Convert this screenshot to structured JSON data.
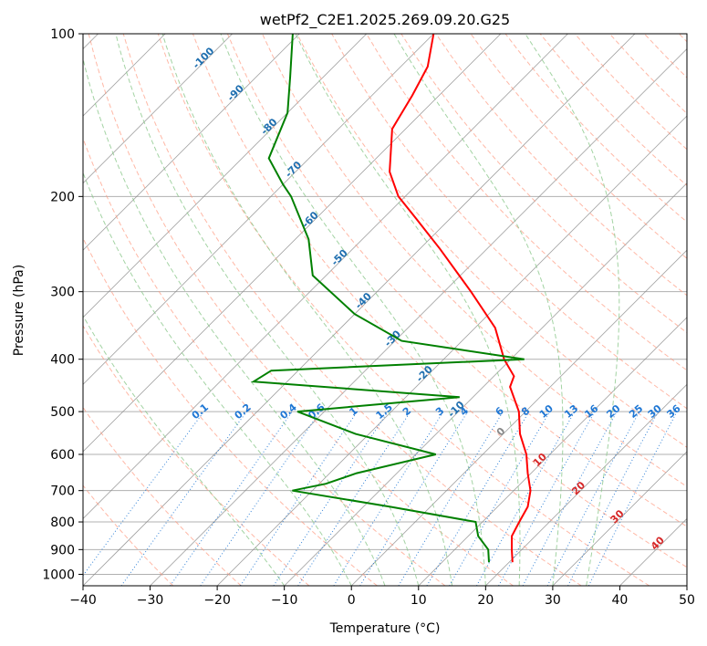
{
  "chart_data": {
    "type": "line",
    "title": "wetPf2_C2E1.2025.269.09.20.G25",
    "xlabel": "Temperature (°C)",
    "ylabel": "Pressure (hPa)",
    "xlim": [
      -40,
      50
    ],
    "ylim": [
      1050,
      100
    ],
    "y_scale": "log",
    "x_ticks": [
      "−40",
      "−30",
      "−20",
      "−10",
      "0",
      "10",
      "20",
      "30",
      "40",
      "50"
    ],
    "y_ticks": [
      "100",
      "200",
      "300",
      "400",
      "500",
      "600",
      "700",
      "800",
      "900",
      "1000"
    ],
    "grid": true,
    "series": [
      {
        "role": "temperature",
        "color": "#ff0000",
        "points": [
          {
            "p": 950,
            "t": 20.5
          },
          {
            "p": 900,
            "t": 18.5
          },
          {
            "p": 850,
            "t": 16.5
          },
          {
            "p": 800,
            "t": 15.5
          },
          {
            "p": 750,
            "t": 14.5
          },
          {
            "p": 700,
            "t": 12.5
          },
          {
            "p": 650,
            "t": 9.5
          },
          {
            "p": 600,
            "t": 6.5
          },
          {
            "p": 550,
            "t": 2.5
          },
          {
            "p": 500,
            "t": -1.0
          },
          {
            "p": 450,
            "t": -6.0
          },
          {
            "p": 430,
            "t": -7.0
          },
          {
            "p": 400,
            "t": -11.0
          },
          {
            "p": 350,
            "t": -17.0
          },
          {
            "p": 300,
            "t": -26.0
          },
          {
            "p": 250,
            "t": -37.0
          },
          {
            "p": 220,
            "t": -45.0
          },
          {
            "p": 200,
            "t": -51.0
          },
          {
            "p": 180,
            "t": -56.0
          },
          {
            "p": 150,
            "t": -62.0
          },
          {
            "p": 130,
            "t": -64.0
          },
          {
            "p": 115,
            "t": -66.0
          },
          {
            "p": 100,
            "t": -70.0
          }
        ]
      },
      {
        "role": "dewpoint",
        "color": "#008000",
        "points": [
          {
            "p": 950,
            "t": 17.0
          },
          {
            "p": 900,
            "t": 15.0
          },
          {
            "p": 850,
            "t": 11.5
          },
          {
            "p": 800,
            "t": 9.0
          },
          {
            "p": 750,
            "t": -6.0
          },
          {
            "p": 700,
            "t": -23.0
          },
          {
            "p": 680,
            "t": -19.0
          },
          {
            "p": 650,
            "t": -16.0
          },
          {
            "p": 600,
            "t": -7.0
          },
          {
            "p": 550,
            "t": -22.0
          },
          {
            "p": 500,
            "t": -34.0
          },
          {
            "p": 470,
            "t": -12.0
          },
          {
            "p": 440,
            "t": -45.0
          },
          {
            "p": 420,
            "t": -44.0
          },
          {
            "p": 400,
            "t": -8.0
          },
          {
            "p": 370,
            "t": -29.0
          },
          {
            "p": 330,
            "t": -40.0
          },
          {
            "p": 280,
            "t": -52.0
          },
          {
            "p": 240,
            "t": -58.0
          },
          {
            "p": 200,
            "t": -67.0
          },
          {
            "p": 190,
            "t": -70.0
          },
          {
            "p": 170,
            "t": -76.0
          },
          {
            "p": 140,
            "t": -80.0
          },
          {
            "p": 120,
            "t": -85.0
          },
          {
            "p": 100,
            "t": -91.0
          }
        ]
      }
    ],
    "mixing_ratio_labels": [
      "0.1",
      "0.2",
      "0.4",
      "0.6",
      "1",
      "1.5",
      "2",
      "3",
      "4",
      "6",
      "8",
      "10",
      "13",
      "16",
      "20",
      "25",
      "30",
      "36"
    ],
    "isotherm_labels": [
      "-100",
      "-90",
      "-80",
      "-70",
      "-60",
      "-50",
      "-40",
      "-30",
      "-20",
      "-10",
      "0",
      "10",
      "20",
      "30",
      "40"
    ],
    "colors": {
      "isotherm": "#888888",
      "dry_adiabat": "#ff9a80",
      "moist_adiabat": "#8cc88c",
      "mixing_ratio": "#1f77d4",
      "isotherm_label_cold": "#1f6fb0",
      "isotherm_label_zero": "#888888",
      "isotherm_label_warm": "#d62728"
    }
  }
}
